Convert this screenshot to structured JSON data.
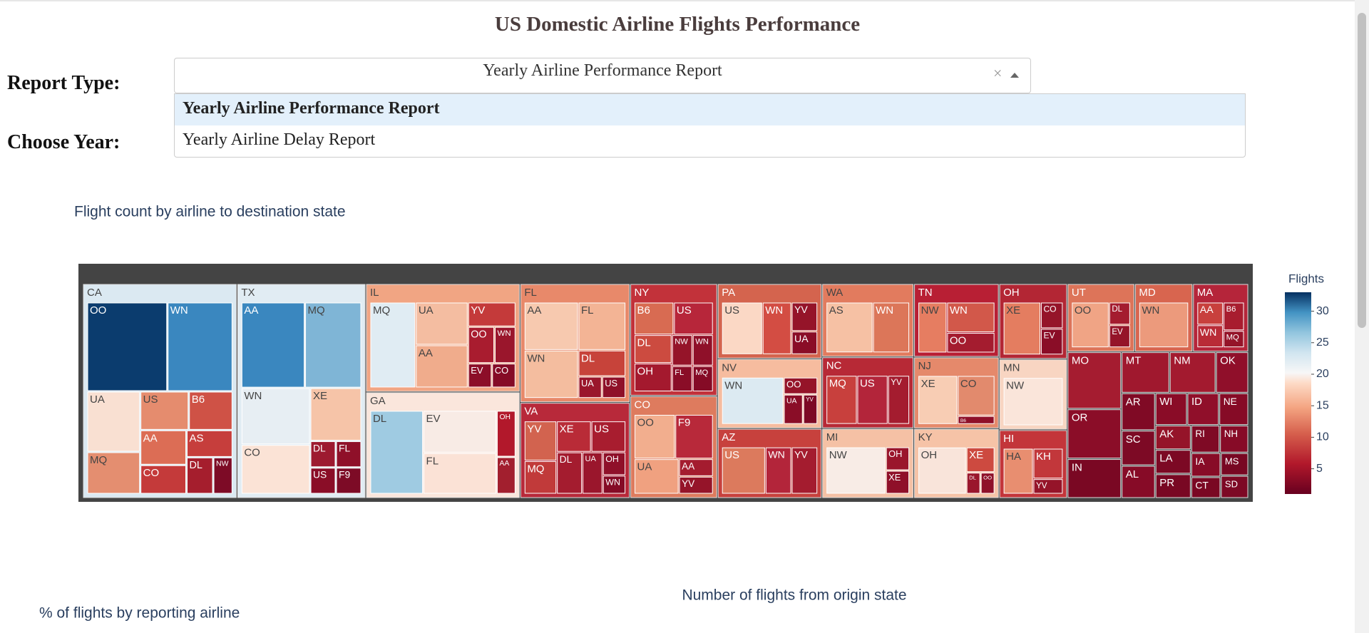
{
  "header": {
    "title": "US Domestic Airline Flights Performance"
  },
  "form": {
    "report_type_label": "Report Type:",
    "year_label": "Choose Year:",
    "selected": "Yearly Airline Performance Report",
    "clear_symbol": "×",
    "options": [
      "Yearly Airline Performance Report",
      "Yearly Airline Delay Report"
    ]
  },
  "chart_data": {
    "type": "treemap",
    "title": "Flight count by airline to destination state",
    "colorbar": {
      "title": "Flights",
      "lim": [
        1,
        33
      ],
      "ticks": [
        5,
        10,
        15,
        20,
        25,
        30
      ]
    },
    "groups": [
      {
        "name": "CA",
        "value": 418,
        "color": "#dbe9f2",
        "children": [
          {
            "name": "OO",
            "value": 80,
            "color": "#0b3c6e"
          },
          {
            "name": "WN",
            "value": 65,
            "color": "#3a87bf"
          },
          {
            "name": "UA",
            "value": 36,
            "color": "#f9e0d2"
          },
          {
            "name": "MQ",
            "value": 25,
            "color": "#e48e70"
          },
          {
            "name": "US",
            "value": 21,
            "color": "#e58c6e"
          },
          {
            "name": "B6",
            "value": 19,
            "color": "#cf5246"
          },
          {
            "name": "AA",
            "value": 18,
            "color": "#dc6d55"
          },
          {
            "name": "CO",
            "value": 15,
            "color": "#c43a3a"
          },
          {
            "name": "AS",
            "value": 14,
            "color": "#c63e3c"
          },
          {
            "name": "DL",
            "value": 11,
            "color": "#a51e2d"
          },
          {
            "name": "NW",
            "value": 8,
            "color": "#7d0b26"
          }
        ]
      },
      {
        "name": "TX",
        "value": 349,
        "color": "#e1ecf3",
        "children": [
          {
            "name": "AA",
            "value": 64,
            "color": "#3a87bf"
          },
          {
            "name": "MQ",
            "value": 57,
            "color": "#7fb5d6"
          },
          {
            "name": "WN",
            "value": 46,
            "color": "#e7eef3"
          },
          {
            "name": "CO",
            "value": 40,
            "color": "#fbe3d6"
          },
          {
            "name": "XE",
            "value": 32,
            "color": "#f6c4a8"
          },
          {
            "name": "DL",
            "value": 8,
            "color": "#9d1a30"
          },
          {
            "name": "FL",
            "value": 8,
            "color": "#8f1029"
          },
          {
            "name": "US",
            "value": 8,
            "color": "#8a0d27"
          },
          {
            "name": "F9",
            "value": 8,
            "color": "#7d0b26"
          }
        ]
      },
      {
        "name": "IL",
        "value": 211,
        "color": "#f1a583",
        "children": [
          {
            "name": "MQ",
            "value": 40,
            "color": "#e0ecf3"
          },
          {
            "name": "UA",
            "value": 23,
            "color": "#f4bda1"
          },
          {
            "name": "AA",
            "value": 23,
            "color": "#f0ac8c"
          },
          {
            "name": "YV",
            "value": 12,
            "color": "#c43a3a"
          },
          {
            "name": "OO",
            "value": 10,
            "color": "#a91c2f"
          },
          {
            "name": "WN",
            "value": 8,
            "color": "#9a162c"
          },
          {
            "name": "EV",
            "value": 6,
            "color": "#8c0e28"
          },
          {
            "name": "CO",
            "value": 6,
            "color": "#850b26"
          }
        ]
      },
      {
        "name": "GA",
        "value": 207,
        "color": "#fae6dc",
        "children": [
          {
            "name": "DL",
            "value": 50,
            "color": "#9fcbe2"
          },
          {
            "name": "EV",
            "value": 35,
            "color": "#f8ebe5"
          },
          {
            "name": "FL",
            "value": 34,
            "color": "#fbe2d6"
          },
          {
            "name": "OH",
            "value": 10,
            "color": "#b2182b"
          },
          {
            "name": "AA",
            "value": 8,
            "color": "#a21f2e"
          }
        ]
      },
      {
        "name": "FL",
        "value": 165,
        "color": "#e8896a",
        "children": [
          {
            "name": "AA",
            "value": 25,
            "color": "#f7c9af"
          },
          {
            "name": "WN",
            "value": 25,
            "color": "#f4bd9f"
          },
          {
            "name": "FL",
            "value": 22,
            "color": "#f3b495"
          },
          {
            "name": "DL",
            "value": 12,
            "color": "#c7433a"
          },
          {
            "name": "UA",
            "value": 5,
            "color": "#9a162c"
          },
          {
            "name": "US",
            "value": 5,
            "color": "#8f1029"
          }
        ]
      },
      {
        "name": "VA",
        "value": 133,
        "color": "#b8293a",
        "children": [
          {
            "name": "YV",
            "value": 12,
            "color": "#d2634f"
          },
          {
            "name": "MQ",
            "value": 10,
            "color": "#c13a3a"
          },
          {
            "name": "XE",
            "value": 10,
            "color": "#b92b37"
          },
          {
            "name": "US",
            "value": 10,
            "color": "#a81d2f"
          },
          {
            "name": "DL",
            "value": 10,
            "color": "#a41c2f"
          },
          {
            "name": "UA",
            "value": 8,
            "color": "#9a162c"
          },
          {
            "name": "OH",
            "value": 5,
            "color": "#8f1029"
          },
          {
            "name": "WN",
            "value": 4,
            "color": "#850b26"
          }
        ]
      },
      {
        "name": "NY",
        "value": 124,
        "color": "#c2323a",
        "children": [
          {
            "name": "B6",
            "value": 12,
            "color": "#d86b52"
          },
          {
            "name": "US",
            "value": 12,
            "color": "#b7263a"
          },
          {
            "name": "DL",
            "value": 10,
            "color": "#cc4b40"
          },
          {
            "name": "OH",
            "value": 10,
            "color": "#a4192e"
          },
          {
            "name": "NW",
            "value": 6,
            "color": "#951429"
          },
          {
            "name": "WN",
            "value": 6,
            "color": "#8f1029"
          },
          {
            "name": "FL",
            "value": 5,
            "color": "#8a0d27"
          },
          {
            "name": "MQ",
            "value": 5,
            "color": "#850b26"
          }
        ]
      },
      {
        "name": "CO",
        "value": 113,
        "color": "#de7b5e",
        "children": [
          {
            "name": "OO",
            "value": 15,
            "color": "#f2ae8e"
          },
          {
            "name": "F9",
            "value": 14,
            "color": "#b8293a"
          },
          {
            "name": "UA",
            "value": 13,
            "color": "#f0a180"
          },
          {
            "name": "AA",
            "value": 5,
            "color": "#a41c2f"
          },
          {
            "name": "YV",
            "value": 5,
            "color": "#951429"
          }
        ]
      },
      {
        "name": "PA",
        "value": 99,
        "color": "#d4644e",
        "children": [
          {
            "name": "US",
            "value": 14,
            "color": "#fbd8c5"
          },
          {
            "name": "WN",
            "value": 10,
            "color": "#d34d43"
          },
          {
            "name": "YV",
            "value": 5,
            "color": "#951429"
          },
          {
            "name": "UA",
            "value": 4,
            "color": "#8a0d27"
          }
        ]
      },
      {
        "name": "NV",
        "value": 92,
        "color": "#f6bc9f",
        "children": [
          {
            "name": "WN",
            "value": 20,
            "color": "#dceaf2"
          },
          {
            "name": "OO",
            "value": 4,
            "color": "#951429"
          },
          {
            "name": "UA",
            "value": 4,
            "color": "#8a0d27"
          },
          {
            "name": "YV",
            "value": 3,
            "color": "#7d0925"
          }
        ]
      },
      {
        "name": "AZ",
        "value": 92,
        "color": "#c7413d",
        "children": [
          {
            "name": "US",
            "value": 10,
            "color": "#dc7a5d"
          },
          {
            "name": "WN",
            "value": 6,
            "color": "#b3253a"
          },
          {
            "name": "YV",
            "value": 6,
            "color": "#a41c2f"
          }
        ]
      },
      {
        "name": "WA",
        "value": 85,
        "color": "#e27b5e",
        "children": [
          {
            "name": "AS",
            "value": 14,
            "color": "#f6c1a4"
          },
          {
            "name": "WN",
            "value": 11,
            "color": "#dc7659"
          }
        ]
      },
      {
        "name": "NC",
        "value": 83,
        "color": "#b72936",
        "children": [
          {
            "name": "MQ",
            "value": 10,
            "color": "#c8403d"
          },
          {
            "name": "US",
            "value": 10,
            "color": "#b3253a"
          },
          {
            "name": "YV",
            "value": 7,
            "color": "#a41c2f"
          }
        ]
      },
      {
        "name": "MI",
        "value": 81,
        "color": "#f5c1a5",
        "children": [
          {
            "name": "NW",
            "value": 20,
            "color": "#f8ece6"
          },
          {
            "name": "OH",
            "value": 4,
            "color": "#9a162c"
          },
          {
            "name": "XE",
            "value": 4,
            "color": "#8f1029"
          }
        ]
      },
      {
        "name": "TN",
        "value": 79,
        "color": "#b81f34",
        "children": [
          {
            "name": "NW",
            "value": 12,
            "color": "#e67d61"
          },
          {
            "name": "WN",
            "value": 12,
            "color": "#d2584a"
          },
          {
            "name": "OO",
            "value": 8,
            "color": "#a41c2f"
          }
        ]
      },
      {
        "name": "NJ",
        "value": 77,
        "color": "#e5896b",
        "children": [
          {
            "name": "XE",
            "value": 18,
            "color": "#f8cdb4"
          },
          {
            "name": "CO",
            "value": 14,
            "color": "#e28a6d"
          },
          {
            "name": "B6",
            "value": 3,
            "color": "#8f1029"
          }
        ]
      },
      {
        "name": "KY",
        "value": 75,
        "color": "#f6c3a7",
        "children": [
          {
            "name": "OH",
            "value": 22,
            "color": "#f9e4da"
          },
          {
            "name": "XE",
            "value": 7,
            "color": "#cd4a40"
          },
          {
            "name": "DL",
            "value": 3,
            "color": "#9a162c"
          },
          {
            "name": "OO",
            "value": 3,
            "color": "#8f1029"
          }
        ]
      },
      {
        "name": "OH",
        "value": 65,
        "color": "#b32634",
        "children": [
          {
            "name": "XE",
            "value": 10,
            "color": "#e47d60"
          },
          {
            "name": "CO",
            "value": 3,
            "color": "#951429"
          },
          {
            "name": "EV",
            "value": 3,
            "color": "#8a0d27"
          }
        ]
      },
      {
        "name": "MN",
        "value": 61,
        "color": "#f8d5c2",
        "children": [
          {
            "name": "NW",
            "value": 24,
            "color": "#fae5da"
          }
        ]
      },
      {
        "name": "HI",
        "value": 59,
        "color": "#c3353a",
        "children": [
          {
            "name": "HA",
            "value": 12,
            "color": "#e88e70"
          },
          {
            "name": "KH",
            "value": 8,
            "color": "#c2373b"
          },
          {
            "name": "YV",
            "value": 4,
            "color": "#951429"
          }
        ]
      },
      {
        "name": "UT",
        "value": 58,
        "color": "#dd7459",
        "children": [
          {
            "name": "OO",
            "value": 14,
            "color": "#f0a485"
          },
          {
            "name": "DL",
            "value": 4,
            "color": "#a41c2f"
          },
          {
            "name": "EV",
            "value": 4,
            "color": "#951429"
          }
        ]
      },
      {
        "name": "MD",
        "value": 50,
        "color": "#d8654f",
        "children": [
          {
            "name": "WN",
            "value": 12,
            "color": "#ec9a7c"
          }
        ]
      },
      {
        "name": "MA",
        "value": 48,
        "color": "#b5253a",
        "children": [
          {
            "name": "AA",
            "value": 5,
            "color": "#c8403d"
          },
          {
            "name": "WN",
            "value": 5,
            "color": "#b92b37"
          },
          {
            "name": "B6",
            "value": 5,
            "color": "#a81d2f"
          },
          {
            "name": "MQ",
            "value": 3,
            "color": "#951429"
          }
        ]
      },
      {
        "name": "MO",
        "value": 39,
        "color": "#a51c30"
      },
      {
        "name": "OR",
        "value": 34,
        "color": "#8b0d28"
      },
      {
        "name": "IN",
        "value": 27,
        "color": "#7a0823"
      },
      {
        "name": "MT",
        "value": 25,
        "color": "#a0182e"
      },
      {
        "name": "NM",
        "value": 24,
        "color": "#a31a2f"
      },
      {
        "name": "OK",
        "value": 17,
        "color": "#900f2a"
      },
      {
        "name": "AR",
        "value": 16,
        "color": "#800a25"
      },
      {
        "name": "SC",
        "value": 15,
        "color": "#7d0a25"
      },
      {
        "name": "AL",
        "value": 14,
        "color": "#870b27"
      },
      {
        "name": "WI",
        "value": 13,
        "color": "#8a0c27"
      },
      {
        "name": "ID",
        "value": 13,
        "color": "#900f2a"
      },
      {
        "name": "NE",
        "value": 12,
        "color": "#860b26"
      },
      {
        "name": "AK",
        "value": 11,
        "color": "#951429"
      },
      {
        "name": "LA",
        "value": 11,
        "color": "#7c0924"
      },
      {
        "name": "PR",
        "value": 11,
        "color": "#790823"
      },
      {
        "name": "RI",
        "value": 10,
        "color": "#7f0a25"
      },
      {
        "name": "NH",
        "value": 10,
        "color": "#870b27"
      },
      {
        "name": "IA",
        "value": 9,
        "color": "#880c27"
      },
      {
        "name": "CT",
        "value": 8,
        "color": "#7a0823"
      },
      {
        "name": "MS",
        "value": 8,
        "color": "#780723"
      },
      {
        "name": "SD",
        "value": 8,
        "color": "#7d0925"
      }
    ]
  },
  "footer": {
    "center": "Number of flights from origin state",
    "left": "% of flights by reporting airline"
  }
}
